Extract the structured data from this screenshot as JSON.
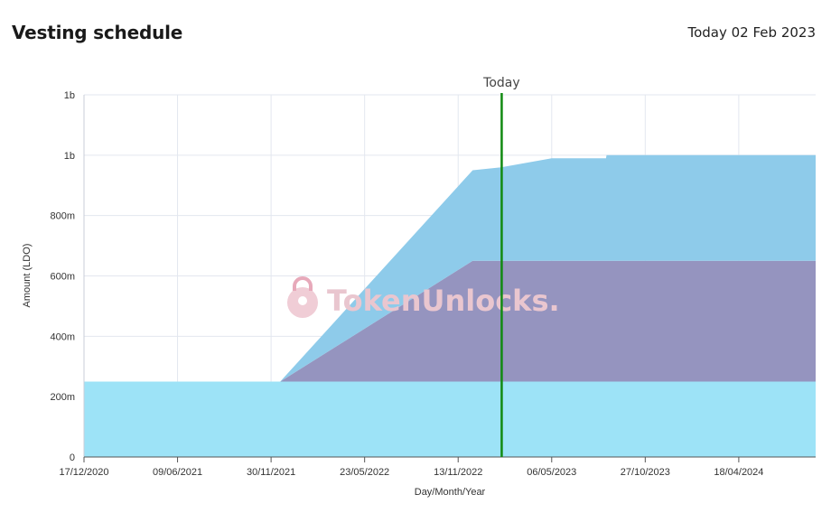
{
  "header": {
    "title": "Vesting schedule",
    "today_text": "Today 02 Feb 2023"
  },
  "watermark": {
    "text": "TokenUnlocks."
  },
  "colors": {
    "base": "#9de3f7",
    "upper": "#8ecbea",
    "middle": "#9594bf",
    "today_line": "#118a11",
    "grid": "#e3e7ef"
  },
  "chart_data": {
    "type": "area",
    "stacked": true,
    "xlabel": "Day/Month/Year",
    "ylabel": "Amount (LDO)",
    "x_ticks": [
      "17/12/2020",
      "09/06/2021",
      "30/11/2021",
      "23/05/2022",
      "13/11/2022",
      "06/05/2023",
      "27/10/2023",
      "18/04/2024"
    ],
    "y_ticks": [
      "0",
      "200m",
      "400m",
      "600m",
      "800m",
      "1b",
      "1b"
    ],
    "ylim": [
      0,
      1200000000
    ],
    "xlim": [
      "17/12/2020",
      "08/09/2024"
    ],
    "grid": true,
    "today_marker": {
      "label": "Today",
      "date": "02/02/2023"
    },
    "series": [
      {
        "values": [
          {
            "x": "17/12/2020",
            "y": 250000000
          },
          {
            "x": "08/09/2024",
            "y": 250000000
          }
        ]
      },
      {
        "values": [
          {
            "x": "17/12/2020",
            "y": 0
          },
          {
            "x": "17/12/2021",
            "y": 0
          },
          {
            "x": "10/12/2022",
            "y": 400000000
          },
          {
            "x": "08/09/2024",
            "y": 400000000
          }
        ]
      },
      {
        "values": [
          {
            "x": "17/12/2020",
            "y": 0
          },
          {
            "x": "17/12/2021",
            "y": 0
          },
          {
            "x": "10/12/2022",
            "y": 300000000
          },
          {
            "x": "01/02/2023",
            "y": 310000000
          },
          {
            "x": "06/05/2023",
            "y": 340000000
          },
          {
            "x": "15/08/2023",
            "y": 340000000
          },
          {
            "x": "16/08/2023",
            "y": 350000000
          },
          {
            "x": "08/09/2024",
            "y": 350000000
          }
        ]
      }
    ]
  }
}
